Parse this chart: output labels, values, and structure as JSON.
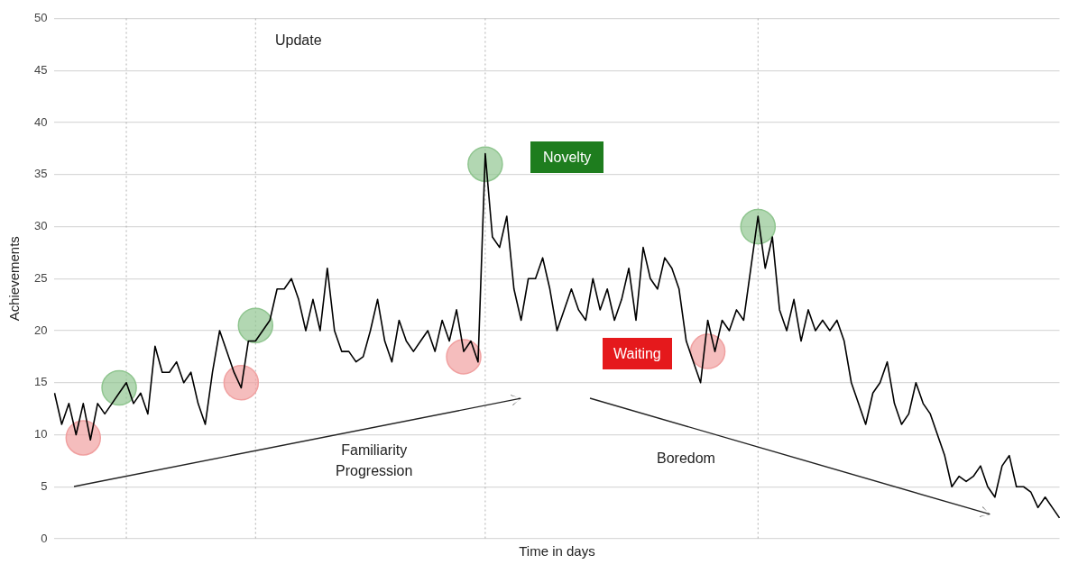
{
  "chart_data": {
    "type": "line",
    "xlabel": "Time in days",
    "ylabel": "Achievements",
    "categories": [
      null,
      null,
      null,
      null,
      null,
      null,
      null,
      null,
      null,
      null,
      null,
      null,
      null,
      null,
      null,
      null,
      null,
      null,
      null,
      null,
      null,
      null,
      null,
      null,
      null,
      null,
      null,
      null,
      null,
      null,
      null,
      null,
      null,
      null,
      null,
      null,
      null,
      null,
      null,
      null,
      null,
      null,
      null,
      null,
      null,
      null,
      null,
      null,
      null,
      null,
      null,
      null,
      null,
      null,
      null,
      null,
      null,
      null,
      null,
      null,
      null,
      null,
      null,
      null,
      null,
      null,
      null,
      null,
      null,
      null,
      null,
      null,
      null,
      null,
      null,
      null,
      null,
      null,
      null,
      null,
      null,
      null,
      null,
      null,
      null,
      null,
      null,
      null,
      null,
      null,
      null,
      null,
      null,
      null,
      null,
      null,
      null,
      null,
      null,
      null,
      null,
      null,
      null,
      null,
      null,
      null,
      null,
      null,
      null,
      null,
      null,
      null,
      null,
      null,
      null,
      null,
      null,
      null,
      null,
      null,
      null,
      null,
      null,
      null,
      null,
      null,
      null,
      null,
      null,
      null,
      null,
      null,
      null,
      null,
      null,
      null,
      null,
      null,
      null,
      null,
      null
    ],
    "series": [
      {
        "color": "#000000",
        "marker": "none",
        "values": [
          14,
          11,
          13,
          10,
          13,
          9.5,
          13,
          12,
          13,
          14,
          15,
          13,
          14,
          12,
          18.5,
          16,
          16,
          17,
          15,
          16,
          13,
          11,
          16,
          20,
          18,
          16,
          14.5,
          19,
          19,
          20,
          21,
          24,
          24,
          25,
          23,
          20,
          23,
          20,
          26,
          20,
          18,
          18,
          17,
          17.5,
          20,
          23,
          19,
          17,
          21,
          19,
          18,
          19,
          20,
          18,
          21,
          19,
          22,
          18,
          19,
          17,
          37,
          29,
          28,
          31,
          24,
          21,
          25,
          25,
          27,
          24,
          20,
          22,
          24,
          22,
          21,
          25,
          22,
          24,
          21,
          23,
          26,
          21,
          28,
          25,
          24,
          27,
          26,
          24,
          19,
          17,
          15,
          21,
          18,
          21,
          20,
          22,
          21,
          26,
          31,
          26,
          29,
          22,
          20,
          23,
          19,
          22,
          20,
          21,
          20,
          21,
          19,
          15,
          13,
          11,
          14,
          15,
          17,
          13,
          11,
          12,
          15,
          13,
          12,
          10,
          8,
          5,
          6,
          5.5,
          6,
          7,
          5,
          4,
          7,
          8,
          5,
          5,
          4.5,
          3,
          4,
          3,
          2
        ]
      },
      {
        "type": "scatter",
        "color": "#8fc58f",
        "marker": "circle",
        "values": [
          null,
          null,
          null,
          null,
          null,
          null,
          null,
          null,
          null,
          14.5,
          null,
          null,
          null,
          null,
          null,
          null,
          null,
          null,
          null,
          null,
          null,
          null,
          null,
          null,
          null,
          null,
          null,
          null,
          20.5,
          null,
          null,
          null,
          null,
          null,
          null,
          null,
          null,
          null,
          null,
          null,
          null,
          null,
          null,
          null,
          null,
          null,
          null,
          null,
          null,
          null,
          null,
          null,
          null,
          null,
          null,
          null,
          null,
          null,
          null,
          null,
          36,
          null,
          null,
          null,
          null,
          null,
          null,
          null,
          null,
          null,
          null,
          null,
          null,
          null,
          null,
          null,
          null,
          null,
          null,
          null,
          null,
          null,
          null,
          null,
          null,
          null,
          null,
          null,
          null,
          null,
          null,
          null,
          null,
          null,
          null,
          null,
          null,
          null,
          30,
          null,
          null,
          null,
          null,
          null,
          null,
          null,
          null,
          null,
          null,
          null,
          null,
          null,
          null,
          null,
          null,
          null,
          null,
          null,
          null,
          null,
          null,
          null,
          null,
          null,
          null,
          null,
          null,
          null,
          null,
          null,
          null,
          null,
          null,
          null,
          null,
          null,
          null,
          null,
          null,
          null,
          null
        ]
      },
      {
        "type": "scatter",
        "color": "#f0a0a0",
        "marker": "circle",
        "values": [
          null,
          null,
          null,
          null,
          9.7,
          null,
          null,
          null,
          null,
          null,
          null,
          null,
          null,
          null,
          null,
          null,
          null,
          null,
          null,
          null,
          null,
          null,
          null,
          null,
          null,
          null,
          15,
          null,
          null,
          null,
          null,
          null,
          null,
          null,
          null,
          null,
          null,
          null,
          null,
          null,
          null,
          null,
          null,
          null,
          null,
          null,
          null,
          null,
          null,
          null,
          null,
          null,
          null,
          null,
          null,
          null,
          null,
          17.5,
          null,
          null,
          null,
          null,
          null,
          null,
          null,
          null,
          null,
          null,
          null,
          null,
          null,
          null,
          null,
          null,
          null,
          null,
          null,
          null,
          null,
          null,
          null,
          null,
          null,
          null,
          null,
          null,
          null,
          null,
          null,
          null,
          null,
          18,
          null,
          null,
          null,
          null,
          null,
          null,
          null,
          null,
          null,
          null,
          null,
          null,
          null,
          null,
          null,
          null,
          null,
          null,
          null,
          null,
          null,
          null,
          null,
          null,
          null,
          null,
          null,
          null,
          null,
          null,
          null,
          null,
          null,
          null,
          null,
          null,
          null,
          null,
          null,
          null,
          null,
          null,
          null,
          null,
          null,
          null,
          null,
          null,
          null
        ]
      }
    ],
    "ylim": [
      0,
      50
    ],
    "yticks": [
      0,
      5,
      10,
      15,
      20,
      25,
      30,
      35,
      40,
      45,
      50
    ],
    "grid": "y",
    "legend": false,
    "tick_labels": "y",
    "annotations": [
      "Update",
      "Novelty",
      "Waiting",
      "Familiarity\nProgression",
      "Boredom"
    ]
  }
}
